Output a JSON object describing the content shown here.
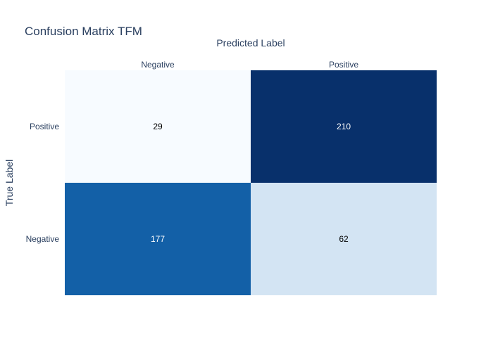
{
  "chart_data": {
    "type": "heatmap",
    "title": "Confusion Matrix TFM",
    "xlabel": "Predicted Label",
    "ylabel": "True Label",
    "x_categories": [
      "Negative",
      "Positive"
    ],
    "y_categories": [
      "Positive",
      "Negative"
    ],
    "values": [
      [
        29,
        210
      ],
      [
        177,
        62
      ]
    ],
    "colorscale": "Blues",
    "x_axis_position": "top",
    "grid": false,
    "colors": {
      "text": "#2a3f5f",
      "scale_low": "#f7fbff",
      "scale_high": "#08306b"
    }
  }
}
